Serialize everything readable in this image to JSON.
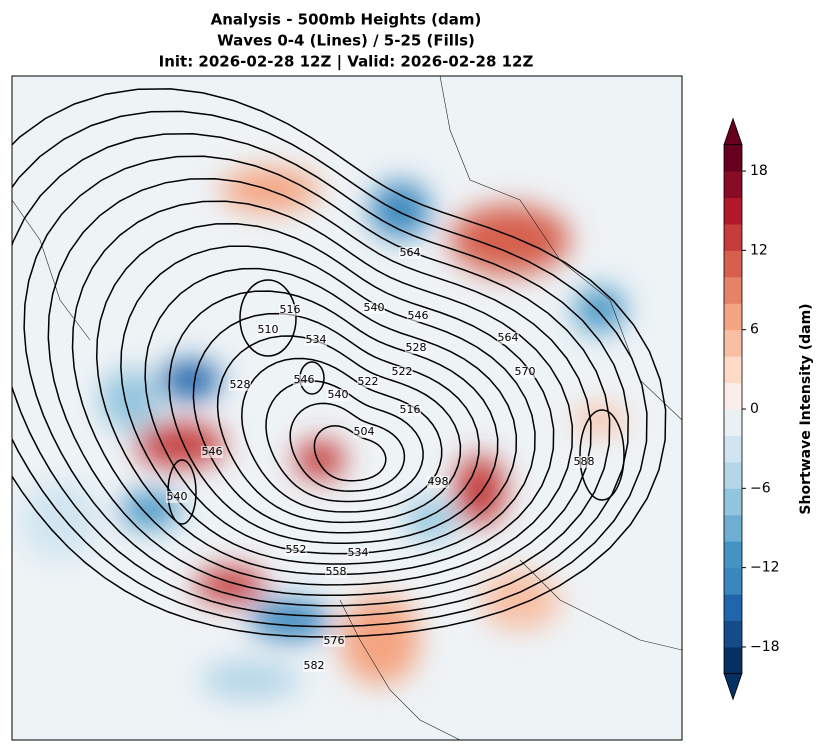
{
  "title": [
    "Analysis - 500mb Heights (dam)",
    "Waves 0-4 (Lines) / 5-25 (Fills)",
    "Init: 2026-02-28 12Z | Valid: 2026-02-28 12Z"
  ],
  "contour_labels": [
    "564",
    "516",
    "510",
    "540",
    "546",
    "534",
    "528",
    "522",
    "528",
    "546",
    "540",
    "522",
    "516",
    "546",
    "540",
    "498",
    "552",
    "534",
    "558",
    "576",
    "582",
    "564",
    "570",
    "588",
    "504"
  ],
  "colorbar": {
    "label": "Shortwave Intensity (dam)",
    "lim": [
      -20,
      20
    ],
    "ticks": [
      {
        "value": -18,
        "label": "−18"
      },
      {
        "value": -12,
        "label": "−12"
      },
      {
        "value": -6,
        "label": "−6"
      },
      0,
      6,
      12,
      18
    ],
    "colors": [
      "#053061",
      "#134c88",
      "#2166ac",
      "#3a87bd",
      "#4393c3",
      "#6eaed2",
      "#92c5de",
      "#b5d6e8",
      "#d1e5f0",
      "#eaf1f5",
      "#f9eee9",
      "#fddbc7",
      "#f8bfa4",
      "#f4a582",
      "#e58267",
      "#d6604d",
      "#c43c3c",
      "#b2182b",
      "#8a0b24",
      "#67001f"
    ]
  }
}
